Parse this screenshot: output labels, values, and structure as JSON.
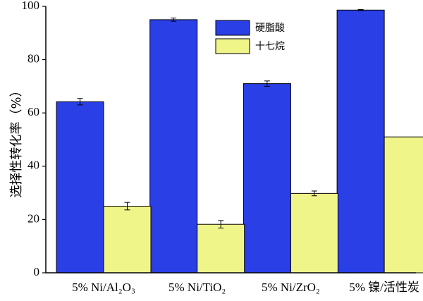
{
  "chart_data": {
    "type": "bar",
    "y_label": "选择性转化率（%）",
    "categories": [
      "5% Ni/Al₂O₃",
      "5% Ni/TiO₂",
      "5% Ni/ZrO₂",
      "5% 镍/活性炭"
    ],
    "series": [
      {
        "name": "硬脂酸",
        "color": "#2b3fe6",
        "values": [
          64.2,
          95.0,
          71.0,
          98.6
        ],
        "errors": [
          1.2,
          0.6,
          1.0,
          0.2
        ]
      },
      {
        "name": "十七烷",
        "color": "#f0f58a",
        "values": [
          25.0,
          18.2,
          29.8,
          51.0
        ],
        "errors": [
          1.4,
          1.4,
          0.9,
          null
        ]
      }
    ],
    "ylim": [
      0,
      100
    ],
    "yticks": [
      0,
      20,
      40,
      60,
      80,
      100
    ],
    "legend": "top-center"
  }
}
